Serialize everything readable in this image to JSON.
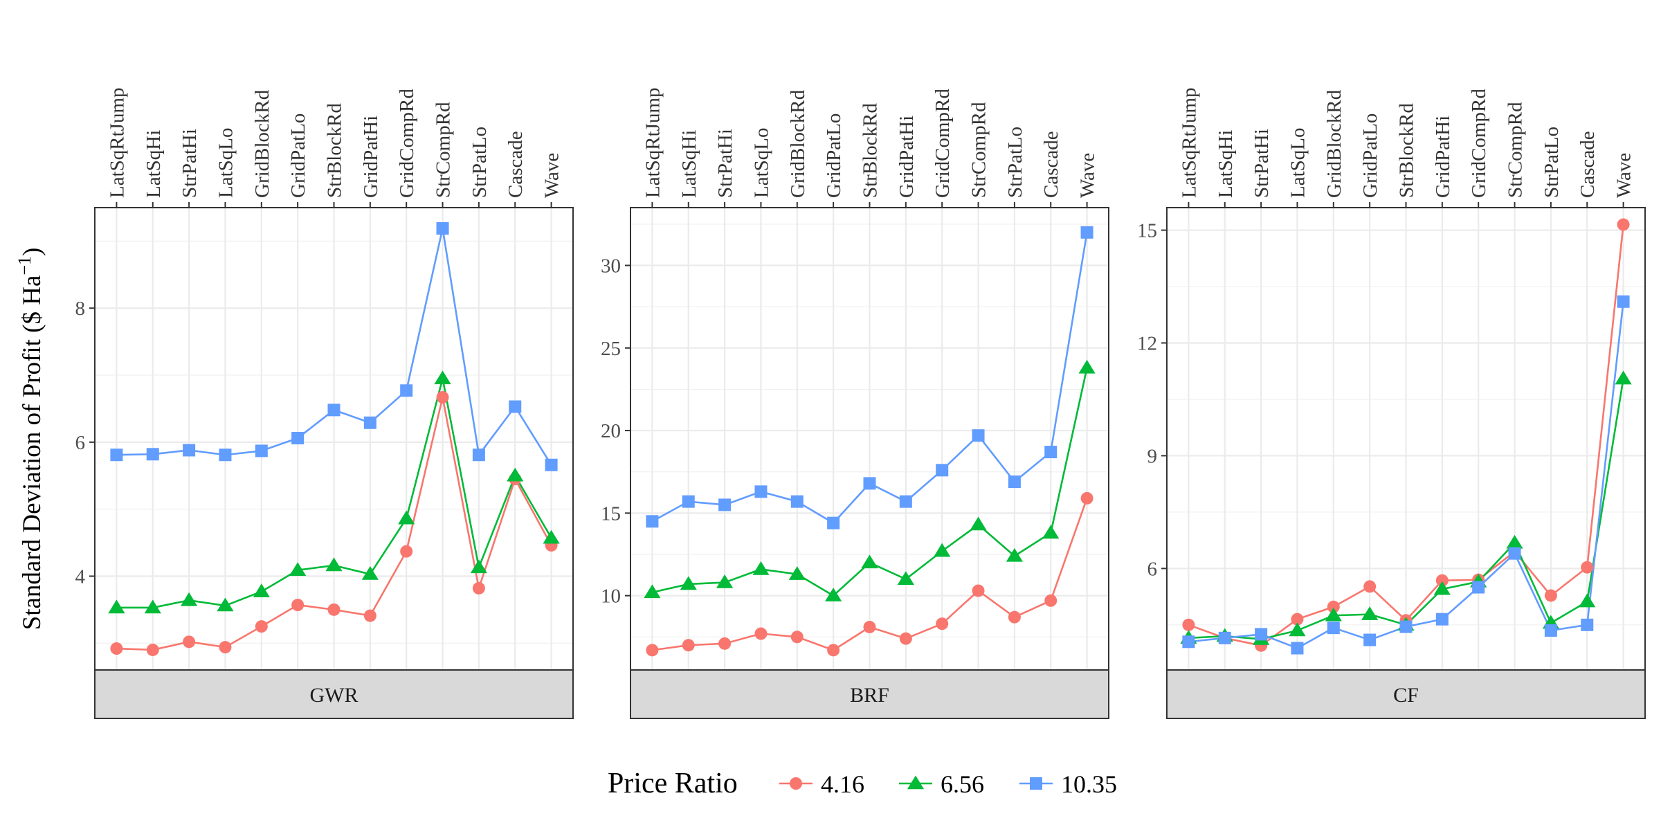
{
  "chart_data": {
    "type": "line",
    "ylabel": "Standard Deviation of Profit ($ Ha",
    "ylabel_sup": "−1",
    "ylabel_close": ")",
    "legend_title": "Price Ratio",
    "legend_position": "bottom",
    "grid": true,
    "categories": [
      "LatSqRtJump",
      "LatSqHi",
      "StrPatHi",
      "LatSqLo",
      "GridBlockRd",
      "GridPatLo",
      "StrBlockRd",
      "GridPatHi",
      "GridCompRd",
      "StrCompRd",
      "StrPatLo",
      "Cascade",
      "Wave"
    ],
    "series_styles": [
      {
        "name": "4.16",
        "color": "#F8766D",
        "shape": "circle"
      },
      {
        "name": "6.56",
        "color": "#00BA38",
        "shape": "triangle"
      },
      {
        "name": "10.35",
        "color": "#619CFF",
        "shape": "square"
      }
    ],
    "panels": [
      {
        "strip": "GWR",
        "ylim": [
          2.6,
          9.5
        ],
        "yticks": [
          4,
          6,
          8
        ],
        "yminor": [
          3,
          5,
          7,
          9
        ],
        "series": [
          {
            "name": "4.16",
            "values": [
              2.92,
              2.9,
              3.02,
              2.94,
              3.25,
              3.57,
              3.5,
              3.41,
              4.37,
              6.67,
              3.82,
              5.45,
              4.46
            ]
          },
          {
            "name": "6.56",
            "values": [
              3.53,
              3.53,
              3.64,
              3.56,
              3.77,
              4.09,
              4.16,
              4.03,
              4.86,
              6.95,
              4.13,
              5.5,
              4.57
            ]
          },
          {
            "name": "10.35",
            "values": [
              5.81,
              5.82,
              5.88,
              5.81,
              5.87,
              6.06,
              6.48,
              6.29,
              6.77,
              9.19,
              5.81,
              6.53,
              5.66
            ]
          }
        ]
      },
      {
        "strip": "BRF",
        "ylim": [
          5.5,
          33.5
        ],
        "yticks": [
          10,
          15,
          20,
          25,
          30
        ],
        "yminor": [
          7.5,
          12.5,
          17.5,
          22.5,
          27.5,
          32.5
        ],
        "series": [
          {
            "name": "4.16",
            "values": [
              6.7,
              7.0,
              7.1,
              7.7,
              7.5,
              6.7,
              8.1,
              7.4,
              8.3,
              10.3,
              8.7,
              9.7,
              15.9
            ]
          },
          {
            "name": "6.56",
            "values": [
              10.2,
              10.7,
              10.8,
              11.6,
              11.3,
              10.0,
              12.0,
              11.0,
              12.7,
              14.3,
              12.4,
              13.8,
              23.8
            ]
          },
          {
            "name": "10.35",
            "values": [
              14.5,
              15.7,
              15.5,
              16.3,
              15.7,
              14.4,
              16.8,
              15.7,
              17.6,
              19.7,
              16.9,
              18.7,
              32.0
            ]
          }
        ]
      },
      {
        "strip": "CF",
        "ylim": [
          3.3,
          15.6
        ],
        "yticks": [
          6,
          9,
          12,
          15
        ],
        "yminor": [
          4.5,
          7.5,
          10.5,
          13.5
        ],
        "series": [
          {
            "name": "4.16",
            "values": [
              4.5,
              4.15,
              3.95,
              4.65,
              4.98,
              5.52,
              4.62,
              5.68,
              5.7,
              6.45,
              5.28,
              6.03,
              15.15
            ]
          },
          {
            "name": "6.56",
            "values": [
              4.15,
              4.2,
              4.12,
              4.35,
              4.75,
              4.78,
              4.5,
              5.45,
              5.65,
              6.68,
              4.55,
              5.12,
              11.05
            ]
          },
          {
            "name": "10.35",
            "values": [
              4.05,
              4.15,
              4.25,
              3.88,
              4.42,
              4.1,
              4.45,
              4.65,
              5.5,
              6.4,
              4.35,
              4.5,
              13.1
            ]
          }
        ]
      }
    ]
  }
}
